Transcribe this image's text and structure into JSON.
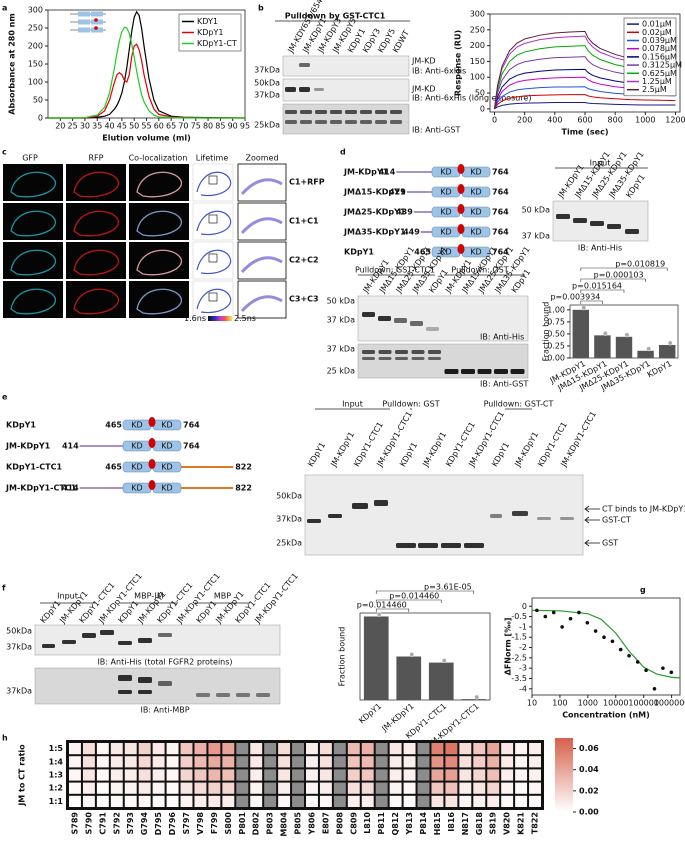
{
  "panel_labels": [
    "a",
    "b",
    "c",
    "d",
    "e",
    "f",
    "g",
    "h"
  ],
  "chart_data": [
    {
      "type": "line",
      "xlabel": "Elution volume (ml)",
      "ylabel": "Absorbance at 280 nm",
      "x": [
        15,
        20,
        25,
        30,
        35,
        38,
        40,
        42,
        43,
        44,
        45,
        46,
        47,
        48,
        49,
        50,
        51,
        52,
        53,
        54,
        56,
        58,
        60,
        65,
        70,
        80,
        95
      ],
      "series": [
        {
          "name": "KDY1",
          "color": "#000000",
          "values": [
            0,
            0,
            0,
            0,
            2,
            5,
            10,
            25,
            35,
            50,
            70,
            100,
            140,
            190,
            240,
            280,
            295,
            285,
            250,
            200,
            110,
            50,
            20,
            5,
            2,
            1,
            0
          ]
        },
        {
          "name": "KDpY1",
          "color": "#e00000",
          "values": [
            0,
            0,
            0,
            0,
            5,
            20,
            50,
            100,
            120,
            126,
            120,
            105,
            100,
            120,
            170,
            200,
            205,
            190,
            160,
            120,
            60,
            25,
            10,
            3,
            1,
            0,
            0
          ]
        },
        {
          "name": "KDpY1-CT",
          "color": "#22cc22",
          "values": [
            0,
            0,
            0,
            1,
            8,
            30,
            70,
            140,
            180,
            215,
            240,
            252,
            250,
            235,
            205,
            170,
            130,
            95,
            65,
            45,
            20,
            8,
            3,
            1,
            0,
            0,
            0
          ]
        }
      ],
      "xlim": [
        15,
        95
      ],
      "xticks": [
        20,
        25,
        30,
        35,
        40,
        45,
        50,
        55,
        60,
        65,
        70,
        75,
        80,
        85,
        90,
        95
      ],
      "ylim": [
        0,
        300
      ],
      "yticks": [
        0,
        50,
        100,
        150,
        200,
        250,
        300
      ],
      "legend": "upper right"
    },
    {
      "type": "line",
      "xlabel": "Time (sec)",
      "ylabel": "Response (RU)",
      "x": [
        0,
        20,
        50,
        100,
        150,
        200,
        300,
        400,
        500,
        600,
        620,
        650,
        700,
        800,
        900,
        1000,
        1100,
        1200
      ],
      "series": [
        {
          "name": "0.01μM",
          "color": "#1a1a8c",
          "values": [
            0,
            6,
            11,
            15,
            17,
            18,
            19,
            20,
            20,
            20,
            18,
            17,
            16,
            14,
            13,
            12,
            12,
            12
          ]
        },
        {
          "name": "0.02μM",
          "color": "#d00000",
          "values": [
            0,
            14,
            25,
            34,
            38,
            41,
            43,
            44,
            45,
            45,
            41,
            38,
            35,
            32,
            29,
            28,
            27,
            26
          ]
        },
        {
          "name": "0.039μM",
          "color": "#2255dd",
          "values": [
            0,
            21,
            39,
            53,
            60,
            63,
            67,
            69,
            69,
            70,
            64,
            60,
            55,
            49,
            46,
            43,
            42,
            41
          ]
        },
        {
          "name": "0.078μM",
          "color": "#cc00cc",
          "values": [
            0,
            30,
            55,
            75,
            85,
            90,
            95,
            98,
            99,
            100,
            92,
            85,
            78,
            70,
            65,
            62,
            60,
            58
          ]
        },
        {
          "name": "0.156μM",
          "color": "#000080",
          "values": [
            0,
            38,
            69,
            94,
            106,
            113,
            119,
            123,
            124,
            125,
            115,
            106,
            98,
            88,
            81,
            78,
            75,
            73
          ]
        },
        {
          "name": "0.3125μM",
          "color": "#7a3aa0",
          "values": [
            0,
            50,
            91,
            124,
            140,
            149,
            157,
            162,
            163,
            165,
            152,
            140,
            129,
            116,
            107,
            102,
            99,
            96
          ]
        },
        {
          "name": "0.625μM",
          "color": "#00aa00",
          "values": [
            0,
            60,
            110,
            150,
            170,
            180,
            190,
            196,
            198,
            200,
            184,
            170,
            156,
            140,
            130,
            124,
            120,
            116
          ]
        },
        {
          "name": "1.25μM",
          "color": "#aa33cc",
          "values": [
            0,
            69,
            127,
            173,
            196,
            207,
            219,
            225,
            228,
            230,
            212,
            196,
            179,
            161,
            150,
            143,
            138,
            133
          ]
        },
        {
          "name": "2.5μM",
          "color": "#5a1f3a",
          "values": [
            0,
            74,
            135,
            184,
            208,
            221,
            233,
            240,
            243,
            245,
            225,
            208,
            191,
            172,
            159,
            152,
            147,
            142
          ]
        }
      ],
      "xlim": [
        -30,
        1230
      ],
      "xticks": [
        0,
        200,
        400,
        600,
        800,
        1000,
        1200
      ],
      "ylim": [
        -10,
        300
      ],
      "yticks": [
        0,
        50,
        100,
        150,
        200,
        250,
        300
      ],
      "legend": "upper right"
    },
    {
      "type": "bar",
      "ylabel": "Fraction bound",
      "categories": [
        "JM-KDpY1",
        "JMΔ15-KDpY1",
        "JMΔ25-KDpY1",
        "JMΔ35-KDpY1",
        "KDpY1"
      ],
      "values": [
        1.0,
        0.47,
        0.44,
        0.15,
        0.27
      ],
      "color": "#555555",
      "ylim": [
        0,
        1.1
      ],
      "yticks": [
        {
          "value": 0,
          "label": "0.00"
        },
        0.25,
        {
          "value": 0.5,
          "label": "0.50"
        },
        0.75,
        {
          "value": 1,
          "label": "1.00"
        }
      ],
      "p_values": [
        "p=0.003934",
        "p=0.015164",
        "p=0.000103",
        "p=0.010819"
      ]
    },
    {
      "type": "bar",
      "ylabel": "Fraction bound",
      "categories": [
        "KDpY1",
        "JM-KDpY1",
        "KDpY1-CTC1",
        "JM-KDpY1-CTC1"
      ],
      "values": [
        0.96,
        0.5,
        0.43,
        0.01
      ],
      "color": "#555555",
      "ylim": [
        0,
        1
      ],
      "p_values": [
        "p=0.014460",
        "p=0.014460",
        "p=3.61E-05"
      ]
    },
    {
      "type": "scatter",
      "xlabel": "Concentration (nM)",
      "ylabel": "ΔFNorm [‰]",
      "xlog": true,
      "x": [
        15,
        30,
        60,
        120,
        240,
        480,
        960,
        1900,
        3800,
        7600,
        15000,
        30000,
        61000,
        122000,
        244000,
        488000,
        976000
      ],
      "values": [
        -0.2,
        -0.5,
        -0.3,
        -1,
        -0.6,
        -0.3,
        -0.8,
        -1.2,
        -1.5,
        -1.7,
        -2.1,
        -2.4,
        -2.7,
        -3.1,
        -4.0,
        -3.0,
        -3.2
      ],
      "color": "#111111",
      "fit": {
        "color": "#2e9a2e",
        "x": [
          10,
          100,
          1000,
          3000,
          10000,
          30000,
          100000,
          300000,
          1000000,
          2000000
        ],
        "values": [
          -0.2,
          -0.22,
          -0.36,
          -0.63,
          -1.3,
          -2.18,
          -2.95,
          -3.29,
          -3.44,
          -3.47
        ]
      },
      "xlim": [
        10,
        2000000
      ],
      "xticks": [
        10,
        100,
        1000,
        10000,
        100000,
        1000000
      ],
      "ylim": [
        -4.3,
        0.4
      ],
      "yticks": [
        0,
        -0.5,
        -1,
        -1.5,
        -2,
        -2.5,
        -3,
        -3.5,
        -4
      ]
    },
    {
      "type": "heatmap",
      "ylabel": "JM to CT ratio",
      "rows": [
        "1:5",
        "1:4",
        "1:3",
        "1:2",
        "1:1"
      ],
      "categories": [
        "S789",
        "S790",
        "C791",
        "S792",
        "S793",
        "G794",
        "D795",
        "D796",
        "S797",
        "V798",
        "F799",
        "S800",
        "P801",
        "D802",
        "P803",
        "M804",
        "P805",
        "Y806",
        "E807",
        "P808",
        "C809",
        "L810",
        "P811",
        "Q812",
        "Y813",
        "P814",
        "H815",
        "I816",
        "N817",
        "G818",
        "S819",
        "V820",
        "K821",
        "T822"
      ],
      "values": [
        [
          0.005,
          0.015,
          0.003,
          0.01,
          0.012,
          0.02,
          0.01,
          0.005,
          0.025,
          0.035,
          0.045,
          0.04,
          null,
          0.01,
          null,
          0.015,
          null,
          0.008,
          0.015,
          null,
          0.03,
          0.035,
          null,
          0.01,
          0.008,
          null,
          0.055,
          0.06,
          0.015,
          0.025,
          0.04,
          0.01,
          0.005,
          0.008
        ],
        [
          0.004,
          0.013,
          0.003,
          0.009,
          0.01,
          0.017,
          0.009,
          0.004,
          0.021,
          0.03,
          0.038,
          0.034,
          null,
          0.009,
          null,
          0.013,
          null,
          0.007,
          0.013,
          null,
          0.026,
          0.03,
          null,
          0.009,
          0.007,
          null,
          0.047,
          0.051,
          0.013,
          0.021,
          0.034,
          0.009,
          0.004,
          0.007
        ],
        [
          0.004,
          0.011,
          0.002,
          0.007,
          0.008,
          0.014,
          0.007,
          0.004,
          0.018,
          0.025,
          0.032,
          0.028,
          null,
          0.007,
          null,
          0.011,
          null,
          0.006,
          0.011,
          null,
          0.021,
          0.025,
          null,
          0.007,
          0.006,
          null,
          0.039,
          0.042,
          0.011,
          0.018,
          0.028,
          0.007,
          0.004,
          0.006
        ],
        [
          0.002,
          0.007,
          0.001,
          0.005,
          0.005,
          0.009,
          0.005,
          0.002,
          0.011,
          0.016,
          0.02,
          0.018,
          null,
          0.005,
          null,
          0.007,
          null,
          0.004,
          0.007,
          null,
          0.014,
          0.016,
          null,
          0.005,
          0.004,
          null,
          0.025,
          0.027,
          0.007,
          0.011,
          0.018,
          0.005,
          0.002,
          0.004
        ],
        [
          0.001,
          0.003,
          0.001,
          0.002,
          0.002,
          0.004,
          0.002,
          0.001,
          0.005,
          0.007,
          0.009,
          0.008,
          null,
          0.002,
          null,
          0.003,
          null,
          0.002,
          0.003,
          null,
          0.006,
          0.007,
          null,
          0.002,
          0.002,
          null,
          0.011,
          0.012,
          0.003,
          0.005,
          0.008,
          0.002,
          0.001,
          0.002
        ]
      ],
      "clim": [
        0,
        0.07
      ],
      "cticks": [
        {
          "value": 0,
          "label": "0.00"
        },
        0.02,
        0.04,
        0.06
      ],
      "colors": [
        "#ffffff",
        "#d65f4a"
      ],
      "missing_color": "#8c8c8c"
    }
  ],
  "blot_b": {
    "title": "Pulldown by GST-CTC1",
    "lanes": [
      "JM-KDY653/654F",
      "JM-KDpY1",
      "JM-KDpY3",
      "JM-KDpY5",
      "KDpY1",
      "KDpY3",
      "KDpY5",
      "KDWT"
    ],
    "markers": [
      "37kDa",
      "50kDa",
      "37kDa",
      "25kDa"
    ],
    "notes": [
      "JM-KD",
      "IB: Anti-6xHis",
      "JM-KD",
      "IB: Anti-6xHis (long exposure)",
      "IB: Anti-GST"
    ]
  },
  "panel_c": {
    "columns": [
      "GFP",
      "RFP",
      "Co-localization",
      "Lifetime",
      "Zoomed"
    ],
    "rows": [
      "C1+RFP",
      "C1+C1",
      "C2+C2",
      "C3+C3"
    ],
    "scale": [
      "1.6ns",
      "2.5ns"
    ]
  },
  "panel_d": {
    "domain": "KD",
    "constructs": [
      {
        "name": "JM-KDpY1",
        "start": 414,
        "end": 764
      },
      {
        "name": "JMΔ15-KDpY1",
        "start": 429,
        "end": 764
      },
      {
        "name": "JMΔ25-KDpY1",
        "start": 439,
        "end": 764
      },
      {
        "name": "JMΔ35-KDpY1",
        "start": 449,
        "end": 764
      },
      {
        "name": "KDpY1",
        "start": 465,
        "end": 764
      }
    ],
    "input_title": "Input",
    "input_lanes": [
      "JM-KDpY1",
      "JMΔ15-KDpY1",
      "JMΔ25-KDpY1",
      "JMΔ35-KDpY1",
      "KDpY1"
    ],
    "input_markers": [
      "50 kDa",
      "37 kDa"
    ],
    "input_ib": "IB: Anti-His",
    "pulldowns": [
      "Pulldown: GST-CTC1",
      "Pulldown: GST"
    ],
    "pd_lanes": [
      "JM-KDpY1",
      "JMΔ15-KDpY1",
      "JMΔ25-KDpY1",
      "JMΔ35-KDpY1",
      "KDpY1",
      "JM-KDpY1",
      "JMΔ15-KDpY1",
      "JMΔ25-KDpY1",
      "JMΔ35-KDpY1",
      "KDpY1"
    ],
    "pd_markers": [
      "50 kDa",
      "37 kDa",
      "37 kDa",
      "25 kDa"
    ],
    "pd_ib": [
      "IB: Anti-His",
      "IB: Anti-GST"
    ]
  },
  "panel_e": {
    "domain": "KD",
    "constructs": [
      {
        "name": "KDpY1",
        "start": 465,
        "end": 764
      },
      {
        "name": "JM-KDpY1",
        "start": 414,
        "end": 764
      },
      {
        "name": "KDpY1-CTC1",
        "start": 465,
        "end": 822
      },
      {
        "name": "JM-KDpY1-CTC1",
        "start": 414,
        "end": 822
      }
    ],
    "headers": [
      "Input",
      "Pulldown: GST",
      "Pulldown: GST-CT"
    ],
    "lanes": [
      "KDpY1",
      "JM-KDpY1",
      "KDpY1-CTC1",
      "JM-KDpY1-CTC1",
      "KDpY1",
      "JM-KDpY1",
      "KDpY1-CTC1",
      "JM-KDpY1-CTC1",
      "KDpY1",
      "JM-KDpY1",
      "KDpY1-CTC1",
      "JM-KDpY1-CTC1"
    ],
    "markers": [
      "50kDa",
      "37kDa",
      "25kDa"
    ],
    "arrows": [
      "CT binds to JM-KDpY1",
      "GST-CT",
      "GST"
    ]
  },
  "panel_f": {
    "headers": [
      "Input",
      "MBP-JM",
      "MBP"
    ],
    "lanes": [
      "KDpY1",
      "JM-KDpY1",
      "KDpY1-CTC1",
      "JM-KDpY1-CTC1",
      "KDpY1",
      "JM-KDpY1",
      "KDpY1-CTC1",
      "JM-KDpY1-CTC1",
      "KDpY1",
      "JM-KDpY1",
      "KDpY1-CTC1",
      "JM-KDpY1-CTC1"
    ],
    "markers": [
      "50kDa",
      "37kDa",
      "37kDa"
    ],
    "ib": [
      "IB: Anti-His (total FGFR2 proteins)",
      "IB: Anti-MBP"
    ]
  }
}
